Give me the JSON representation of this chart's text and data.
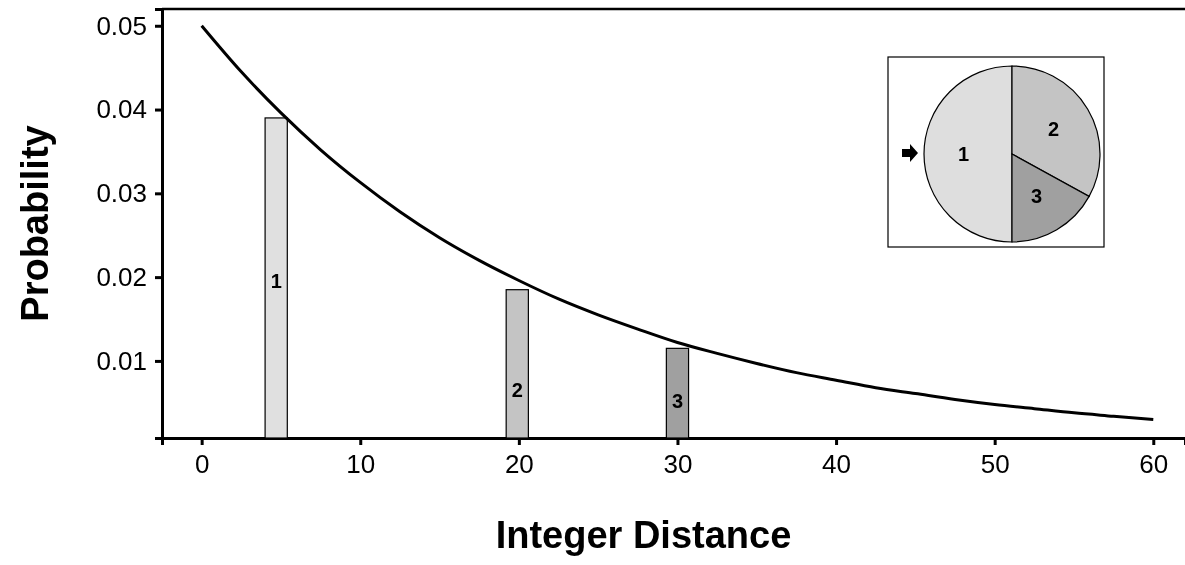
{
  "chart_data": [
    {
      "type": "line",
      "xlabel": "Integer Distance",
      "ylabel": "Probability",
      "xlim": [
        -2.5,
        62
      ],
      "xticks": [
        0,
        10,
        20,
        30,
        40,
        50,
        60
      ],
      "ylim": [
        0.0008,
        0.052
      ],
      "yticks": [
        0.01,
        0.02,
        0.03,
        0.04,
        0.05
      ],
      "series": [
        {
          "type": "bar",
          "x": [
            4.7,
            19.9,
            30
          ],
          "values": [
            0.039,
            0.0185,
            0.0115
          ],
          "colors": [
            "#e0e0e0",
            "#c4c4c4",
            "#a0a0a0"
          ]
        },
        {
          "type": "line",
          "color": "#000000",
          "x": [
            0,
            2.5,
            5,
            7.5,
            10,
            12.5,
            15,
            17.5,
            20,
            22.5,
            25,
            27.5,
            30,
            32.5,
            35,
            37.5,
            40,
            42.5,
            45,
            47.5,
            50,
            52.5,
            55,
            57.5,
            60
          ],
          "values": [
            0.05,
            0.0445,
            0.0396,
            0.0352,
            0.0313,
            0.0278,
            0.0247,
            0.022,
            0.0196,
            0.0174,
            0.0155,
            0.0138,
            0.0122,
            0.0109,
            0.0097,
            0.0086,
            0.0077,
            0.0068,
            0.0061,
            0.0054,
            0.0048,
            0.0043,
            0.0038,
            0.0034,
            0.003
          ]
        }
      ],
      "annotations": [
        "1",
        "2",
        "3"
      ]
    },
    {
      "type": "pie",
      "categories": [
        "1",
        "2",
        "3"
      ],
      "values": [
        50,
        33,
        17
      ],
      "colors": [
        "#dedede",
        "#c4c4c4",
        "#a0a0a0"
      ]
    }
  ]
}
